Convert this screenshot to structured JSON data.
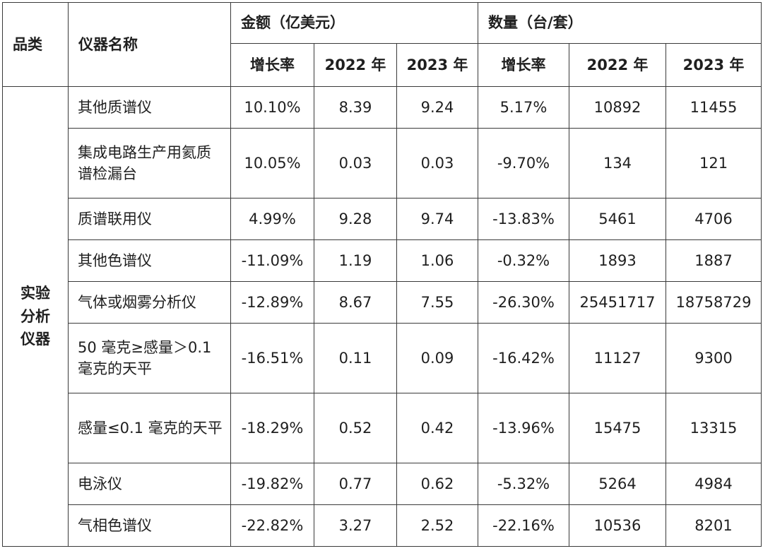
{
  "header": {
    "category": "品类",
    "instrument_name": "仪器名称",
    "amount_group": "金额（亿美元）",
    "quantity_group": "数量（台/套）",
    "growth": "增长率",
    "year_2022": "2022 年",
    "year_2023": "2023 年"
  },
  "category_label": [
    "实验",
    "分析",
    "仪器"
  ],
  "rows": [
    {
      "name": "其他质谱仪",
      "amount_growth": "10.10%",
      "amount_2022": "8.39",
      "amount_2023": "9.24",
      "qty_growth": "5.17%",
      "qty_2022": "10892",
      "qty_2023": "11455"
    },
    {
      "name": "集成电路生产用氦质谱检漏台",
      "amount_growth": "10.05%",
      "amount_2022": "0.03",
      "amount_2023": "0.03",
      "qty_growth": "-9.70%",
      "qty_2022": "134",
      "qty_2023": "121"
    },
    {
      "name": "质谱联用仪",
      "amount_growth": "4.99%",
      "amount_2022": "9.28",
      "amount_2023": "9.74",
      "qty_growth": "-13.83%",
      "qty_2022": "5461",
      "qty_2023": "4706"
    },
    {
      "name": "其他色谱仪",
      "amount_growth": "-11.09%",
      "amount_2022": "1.19",
      "amount_2023": "1.06",
      "qty_growth": "-0.32%",
      "qty_2022": "1893",
      "qty_2023": "1887"
    },
    {
      "name": "气体或烟雾分析仪",
      "amount_growth": "-12.89%",
      "amount_2022": "8.67",
      "amount_2023": "7.55",
      "qty_growth": "-26.30%",
      "qty_2022": "25451717",
      "qty_2023": "18758729"
    },
    {
      "name": "50 毫克≥感量＞0.1 毫克的天平",
      "amount_growth": "-16.51%",
      "amount_2022": "0.11",
      "amount_2023": "0.09",
      "qty_growth": "-16.42%",
      "qty_2022": "11127",
      "qty_2023": "9300"
    },
    {
      "name": "感量≤0.1 毫克的天平",
      "amount_growth": "-18.29%",
      "amount_2022": "0.52",
      "amount_2023": "0.42",
      "qty_growth": "-13.96%",
      "qty_2022": "15475",
      "qty_2023": "13315"
    },
    {
      "name": "电泳仪",
      "amount_growth": "-19.82%",
      "amount_2022": "0.77",
      "amount_2023": "0.62",
      "qty_growth": "-5.32%",
      "qty_2022": "5264",
      "qty_2023": "4984"
    },
    {
      "name": "气相色谱仪",
      "amount_growth": "-22.82%",
      "amount_2022": "3.27",
      "amount_2023": "2.52",
      "qty_growth": "-22.16%",
      "qty_2022": "10536",
      "qty_2023": "8201"
    }
  ]
}
